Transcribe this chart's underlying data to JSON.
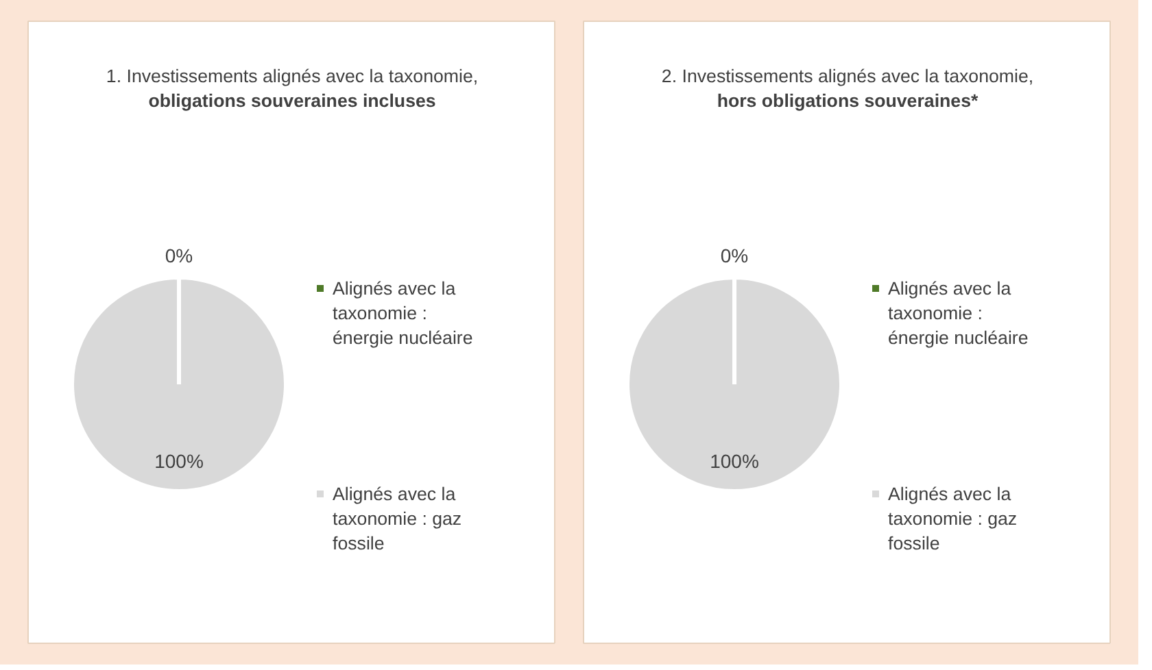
{
  "chart_data": [
    {
      "type": "pie",
      "title": "1. Investissements alignés avec la taxonomie,",
      "subtitle": "obligations souveraines incluses",
      "categories": [
        "Alignés avec la taxonomie : énergie nucléaire",
        "Alignés avec la taxonomie : gaz fossile"
      ],
      "values": [
        0,
        100
      ],
      "value_labels": [
        "0%",
        "100%"
      ],
      "colors": [
        "#4f7a28",
        "#d9d9d9"
      ],
      "legend": "right"
    },
    {
      "type": "pie",
      "title": "2. Investissements alignés avec la taxonomie,",
      "subtitle": "hors obligations souveraines*",
      "categories": [
        "Alignés avec la taxonomie : énergie nucléaire",
        "Alignés avec la taxonomie : gaz fossile"
      ],
      "values": [
        0,
        100
      ],
      "value_labels": [
        "0%",
        "100%"
      ],
      "colors": [
        "#4f7a28",
        "#d9d9d9"
      ],
      "legend": "right"
    }
  ]
}
